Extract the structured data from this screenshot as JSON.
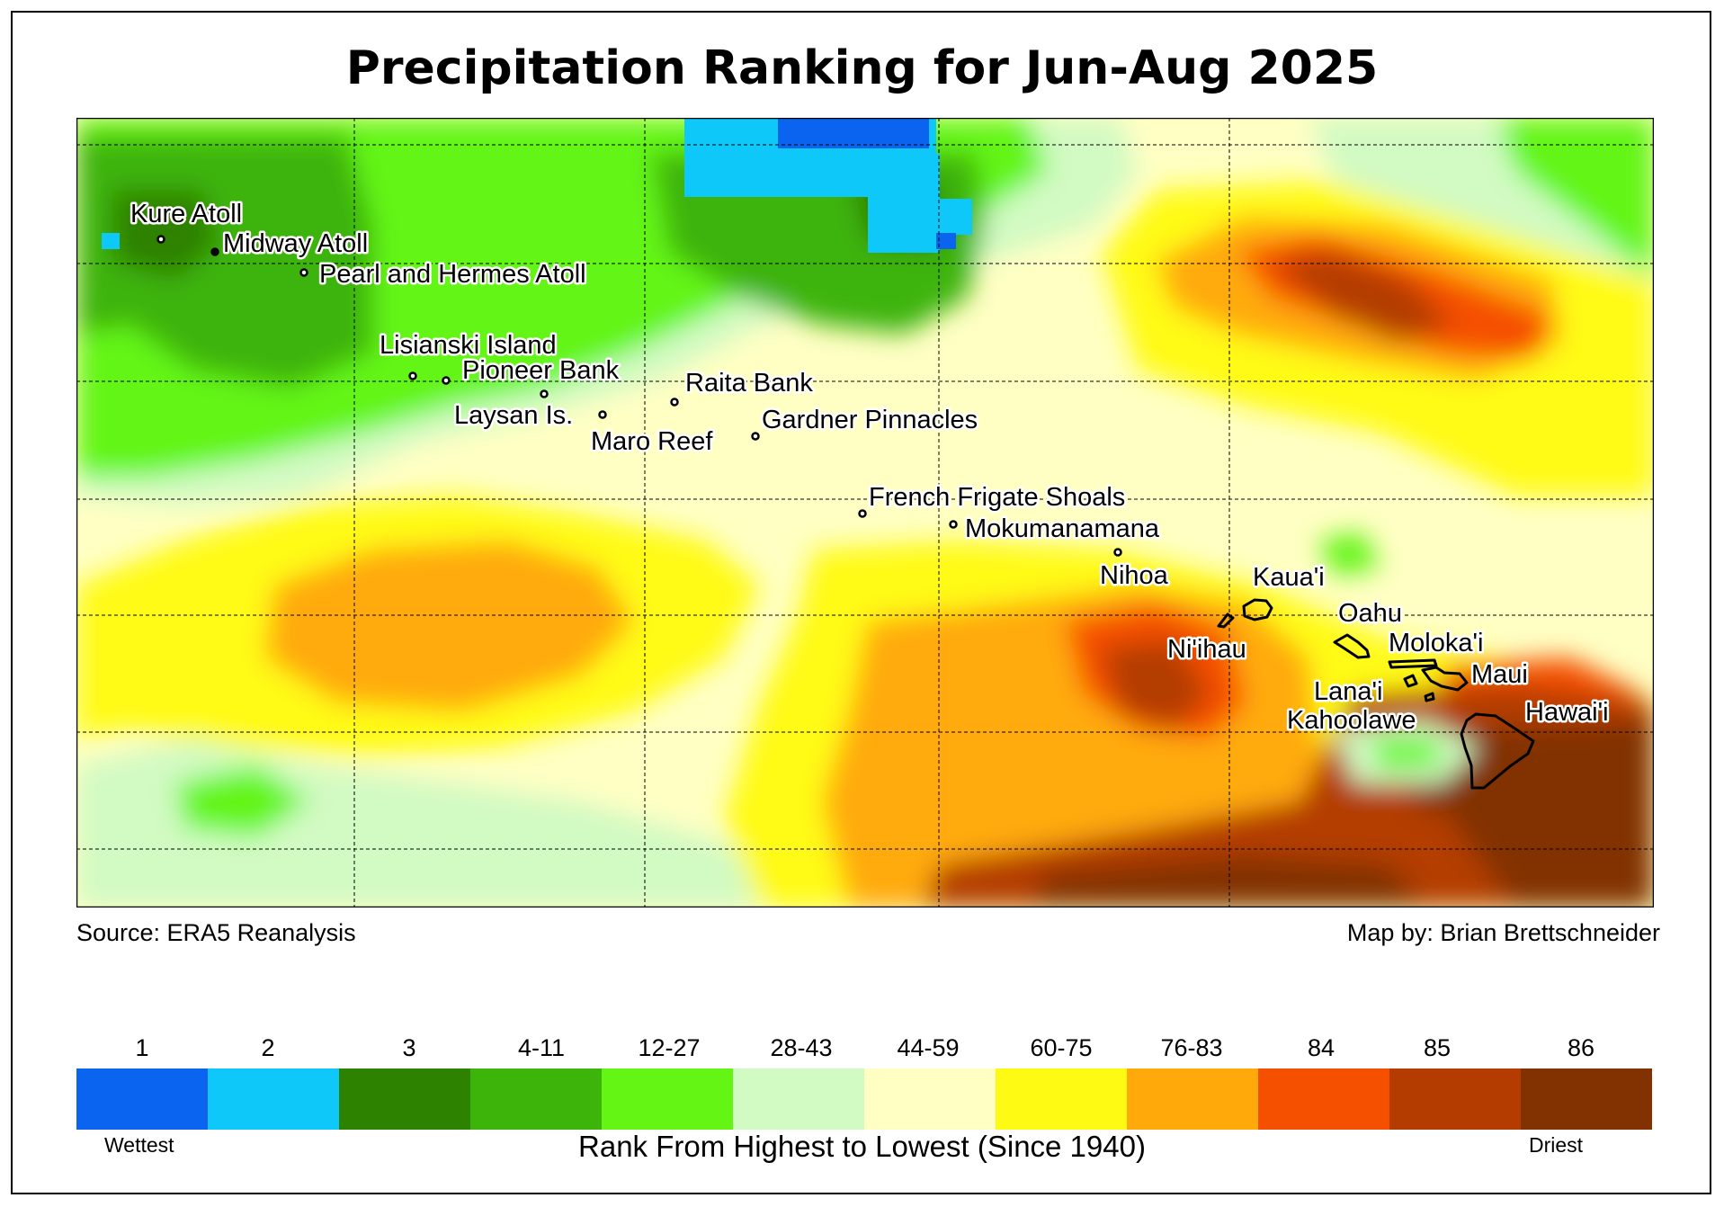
{
  "title": "Precipitation Ranking for Jun-Aug 2025",
  "source": "Source: ERA5 Reanalysis",
  "credit": "Map by: Brian Brettschneider",
  "legend": {
    "title": "Rank From Highest to Lowest (Since 1940)",
    "low_label": "Wettest",
    "high_label": "Driest",
    "classes": [
      {
        "label": "1",
        "color": "#0a64f0"
      },
      {
        "label": "2",
        "color": "#0ec8fa"
      },
      {
        "label": "3",
        "color": "#2d8200"
      },
      {
        "label": "4-11",
        "color": "#3cb40a"
      },
      {
        "label": "12-27",
        "color": "#64f514"
      },
      {
        "label": "28-43",
        "color": "#d2fac3"
      },
      {
        "label": "44-59",
        "color": "#ffffc3"
      },
      {
        "label": "60-75",
        "color": "#fffa14"
      },
      {
        "label": "76-83",
        "color": "#ffaa0a"
      },
      {
        "label": "84",
        "color": "#f55000"
      },
      {
        "label": "85",
        "color": "#b43c00"
      },
      {
        "label": "86",
        "color": "#823200"
      }
    ]
  },
  "places": [
    {
      "name": "Kure Atoll"
    },
    {
      "name": "Midway Atoll"
    },
    {
      "name": "Pearl and Hermes Atoll"
    },
    {
      "name": "Lisianski Island"
    },
    {
      "name": "Pioneer Bank"
    },
    {
      "name": "Laysan Is."
    },
    {
      "name": "Raita Bank"
    },
    {
      "name": "Maro Reef"
    },
    {
      "name": "Gardner Pinnacles"
    },
    {
      "name": "French Frigate Shoals"
    },
    {
      "name": "Mokumanamana"
    },
    {
      "name": "Nihoa"
    },
    {
      "name": "Kaua'i"
    },
    {
      "name": "Ni'ihau"
    },
    {
      "name": "Oahu"
    },
    {
      "name": "Moloka'i"
    },
    {
      "name": "Maui"
    },
    {
      "name": "Lana'i"
    },
    {
      "name": "Kahoolawe"
    },
    {
      "name": "Hawai'i"
    }
  ]
}
